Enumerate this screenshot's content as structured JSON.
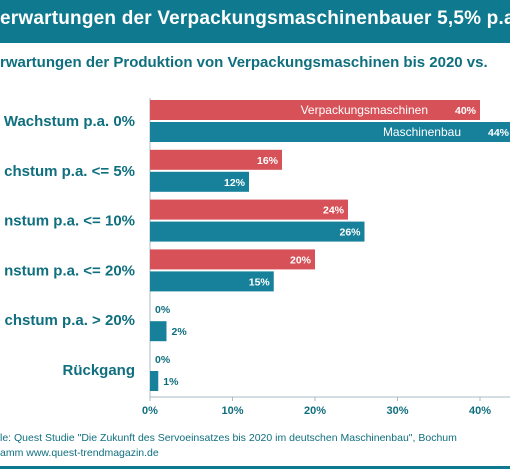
{
  "title": "erwartungen der Verpackungsmaschinenbauer 5,5% p.a. b",
  "subtitle": "rwartungen der Produktion von Verpackungsmaschinen bis 2020 vs.",
  "source_line1": "le: Quest Studie \"Die Zukunft des Servoeinsatzes bis 2020 im deutschen Maschinenbau\", Bochum",
  "source_line2": "amm  www.quest-trendmagazin.de",
  "colors": {
    "title_bg": "#0f7a8f",
    "text": "#0f6f7e",
    "series_red": "#d65258",
    "series_teal": "#17819b",
    "axis": "#a8bcc4"
  },
  "chart_data": {
    "type": "bar",
    "orientation": "horizontal",
    "categories": [
      "Wachstum p.a. 0%",
      "chstum p.a. <= 5%",
      "nstum p.a. <= 10%",
      "nstum p.a. <= 20%",
      "chstum p.a. > 20%",
      "Rückgang"
    ],
    "series": [
      {
        "name": "Verpackungsmaschinen",
        "color": "#d65258",
        "values": [
          40,
          16,
          24,
          20,
          0,
          0
        ],
        "labels": [
          "40%",
          "16%",
          "24%",
          "20%",
          "0%",
          "0%"
        ]
      },
      {
        "name": "Maschinenbau",
        "color": "#17819b",
        "values": [
          44,
          12,
          26,
          15,
          2,
          1
        ],
        "labels": [
          "44%",
          "12%",
          "26%",
          "15%",
          "2%",
          "1%"
        ]
      }
    ],
    "xlim": [
      0,
      40
    ],
    "xticks": [
      0,
      10,
      20,
      30,
      40
    ],
    "xtick_labels": [
      "0%",
      "10%",
      "20%",
      "30%",
      "40%"
    ],
    "grid": false,
    "legend": "inside-bars"
  }
}
